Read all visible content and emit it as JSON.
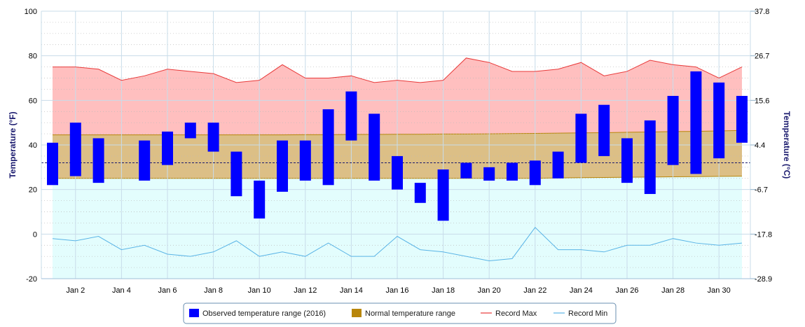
{
  "chart_data": {
    "type": "bar",
    "title": "",
    "xlabel": "",
    "ylabel": "Temperature (°F)",
    "ylabel_right": "Temperature (°C)",
    "ylim": [
      -20,
      100
    ],
    "yticks": [
      -20,
      0,
      20,
      40,
      60,
      80,
      100
    ],
    "right_ticks": [
      "-28.9",
      "-17.8",
      "-6.7",
      "4.4",
      "15.6",
      "26.7",
      "37.8"
    ],
    "x_tick_labels": [
      "Jan 2",
      "Jan 4",
      "Jan 6",
      "Jan 8",
      "Jan 10",
      "Jan 12",
      "Jan 14",
      "Jan 16",
      "Jan 18",
      "Jan 20",
      "Jan 22",
      "Jan 24",
      "Jan 26",
      "Jan 28",
      "Jan 30"
    ],
    "x": [
      1,
      2,
      3,
      4,
      5,
      6,
      7,
      8,
      9,
      10,
      11,
      12,
      13,
      14,
      15,
      16,
      17,
      18,
      19,
      20,
      21,
      22,
      23,
      24,
      25,
      26,
      27,
      28,
      29,
      30,
      31
    ],
    "freezing_line": 32,
    "grid": true,
    "legend_position": "bottom-center",
    "series": [
      {
        "name": "Observed temperature range (2016)",
        "color": "#0000ff",
        "low": [
          22,
          26,
          23,
          null,
          24,
          31,
          43,
          37,
          17,
          7,
          19,
          24,
          22,
          42,
          24,
          20,
          14,
          6,
          25,
          24,
          24,
          22,
          25,
          32,
          35,
          23,
          18,
          31,
          27,
          34,
          41
        ],
        "high": [
          41,
          50,
          43,
          null,
          42,
          46,
          50,
          50,
          37,
          24,
          42,
          42,
          56,
          64,
          54,
          35,
          23,
          29,
          32,
          30,
          32,
          33,
          37,
          54,
          58,
          43,
          51,
          62,
          73,
          68,
          62
        ]
      },
      {
        "name": "Normal temperature range",
        "color": "#b8860b",
        "low": [
          25,
          25,
          25,
          25,
          25,
          25,
          25,
          25,
          25,
          25,
          25,
          25,
          25,
          25,
          25,
          25,
          25,
          25,
          25,
          25,
          25,
          25,
          25.2,
          25.3,
          25.4,
          25.5,
          25.6,
          25.7,
          25.8,
          25.9,
          26
        ],
        "high": [
          44.5,
          44.5,
          44.5,
          44.5,
          44.5,
          44.5,
          44.5,
          44.5,
          44.5,
          44.5,
          44.5,
          44.6,
          44.6,
          44.7,
          44.7,
          44.8,
          44.8,
          44.9,
          44.9,
          45,
          45.1,
          45.2,
          45.3,
          45.4,
          45.5,
          45.7,
          45.8,
          46,
          46.1,
          46.3,
          46.5
        ]
      },
      {
        "name": "Record Max",
        "color": "#e83a3a",
        "values": [
          75,
          75,
          74,
          69,
          71,
          74,
          73,
          72,
          68,
          69,
          76,
          70,
          70,
          71,
          68,
          69,
          68,
          69,
          79,
          77,
          73,
          73,
          74,
          77,
          71,
          73,
          78,
          76,
          75,
          70,
          75
        ]
      },
      {
        "name": "Record Min",
        "color": "#5ab4e6",
        "values": [
          -2,
          -3,
          -1,
          -7,
          -5,
          -9,
          -10,
          -8,
          -3,
          -10,
          -8,
          -10,
          -4,
          -10,
          -10,
          -1,
          -7,
          -8,
          -10,
          -12,
          -11,
          3,
          -7,
          -7,
          -8,
          -5,
          -5,
          -2,
          -4,
          -5,
          -4
        ]
      }
    ]
  },
  "colors": {
    "record_fill": "#ffbfbf",
    "normal_fill": "#dcbf86",
    "below_fill": "#e3fdfd",
    "grid": "#c8dcea",
    "axis_title": "#1a1a6e",
    "freezing_line": "#1a1a6e"
  }
}
